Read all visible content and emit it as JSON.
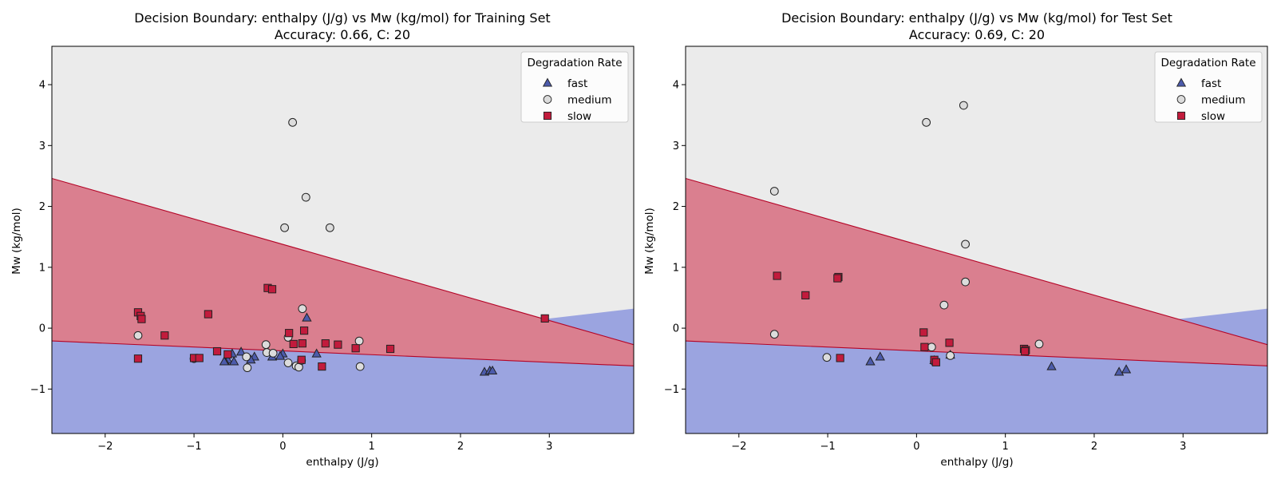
{
  "colors": {
    "region_fast": "#9ba4e0",
    "region_medium": "#ebebeb",
    "region_slow": "#da7f8f",
    "boundary": "#b40426",
    "marker_fast": "#4c5bab",
    "marker_medium": "#dcdcdc",
    "marker_slow": "#c21b3c",
    "marker_edge": "#222222"
  },
  "chart_data": [
    {
      "type": "scatter",
      "title": "Decision Boundary: enthalpy (J/g) vs Mw (kg/mol) for Training Set",
      "subtitle": "Accuracy: 0.66, C: 20",
      "xlabel": "enthalpy (J/g)",
      "ylabel": "Mw (kg/mol)",
      "xlim": [
        -2.6,
        3.95
      ],
      "ylim": [
        -1.73,
        4.63
      ],
      "xticks": [
        -2,
        -1,
        0,
        1,
        2,
        3
      ],
      "yticks": [
        -1,
        0,
        1,
        2,
        3,
        4
      ],
      "legend": {
        "title": "Degradation Rate",
        "position": "top-right",
        "entries": [
          "fast",
          "medium",
          "slow"
        ]
      },
      "regions": {
        "upper_boundary": {
          "y_at_xmin": 2.46,
          "y_at_xmax": -0.27
        },
        "lower_boundary": {
          "y_at_xmin": -0.21,
          "y_at_xmax": -0.62
        },
        "fast_wedge": {
          "x_start": 2.95,
          "y_start": 0.15,
          "y_at_xmax": 0.32
        }
      },
      "series": [
        {
          "name": "fast",
          "marker": "triangle",
          "points": [
            [
              0.27,
              0.17
            ],
            [
              -0.47,
              -0.39
            ],
            [
              -0.32,
              -0.47
            ],
            [
              -0.57,
              -0.42
            ],
            [
              -0.12,
              -0.47
            ],
            [
              0.38,
              -0.42
            ],
            [
              0.0,
              -0.42
            ],
            [
              -0.62,
              -0.52
            ],
            [
              -0.55,
              -0.55
            ],
            [
              -0.65,
              -0.55
            ],
            [
              -0.03,
              -0.46
            ],
            [
              -0.36,
              -0.52
            ],
            [
              2.27,
              -0.72
            ],
            [
              2.33,
              -0.7
            ],
            [
              2.36,
              -0.7
            ],
            [
              -0.66,
              -0.55
            ]
          ]
        },
        {
          "name": "medium",
          "marker": "circle",
          "points": [
            [
              0.11,
              3.38
            ],
            [
              0.26,
              2.15
            ],
            [
              0.02,
              1.65
            ],
            [
              0.53,
              1.65
            ],
            [
              0.22,
              0.32
            ],
            [
              0.06,
              -0.15
            ],
            [
              -0.19,
              -0.27
            ],
            [
              -1.63,
              -0.12
            ],
            [
              -0.18,
              -0.4
            ],
            [
              -0.41,
              -0.47
            ],
            [
              -0.11,
              -0.41
            ],
            [
              0.06,
              -0.57
            ],
            [
              -0.4,
              -0.65
            ],
            [
              0.15,
              -0.62
            ],
            [
              0.18,
              -0.64
            ],
            [
              -1.0,
              -0.5
            ],
            [
              0.86,
              -0.21
            ],
            [
              0.87,
              -0.63
            ],
            [
              0.21,
              -0.53
            ]
          ]
        },
        {
          "name": "slow",
          "marker": "square",
          "points": [
            [
              -0.17,
              0.66
            ],
            [
              -0.12,
              0.64
            ],
            [
              -1.63,
              0.26
            ],
            [
              -1.6,
              0.2
            ],
            [
              -1.59,
              0.15
            ],
            [
              -0.84,
              0.23
            ],
            [
              -1.33,
              -0.12
            ],
            [
              -0.74,
              -0.38
            ],
            [
              -0.62,
              -0.43
            ],
            [
              0.07,
              -0.08
            ],
            [
              0.12,
              -0.26
            ],
            [
              0.24,
              -0.04
            ],
            [
              0.22,
              -0.25
            ],
            [
              0.48,
              -0.25
            ],
            [
              0.62,
              -0.27
            ],
            [
              0.82,
              -0.33
            ],
            [
              1.21,
              -0.34
            ],
            [
              0.21,
              -0.52
            ],
            [
              0.44,
              -0.63
            ],
            [
              -1.63,
              -0.5
            ],
            [
              -1.0,
              -0.49
            ],
            [
              -0.94,
              -0.49
            ],
            [
              2.95,
              0.16
            ]
          ]
        }
      ]
    },
    {
      "type": "scatter",
      "title": "Decision Boundary: enthalpy (J/g) vs Mw (kg/mol) for Test Set",
      "subtitle": "Accuracy: 0.69, C: 20",
      "xlabel": "enthalpy (J/g)",
      "ylabel": "Mw (kg/mol)",
      "xlim": [
        -2.6,
        3.95
      ],
      "ylim": [
        -1.73,
        4.63
      ],
      "xticks": [
        -2,
        -1,
        0,
        1,
        2,
        3
      ],
      "yticks": [
        -1,
        0,
        1,
        2,
        3,
        4
      ],
      "legend": {
        "title": "Degradation Rate",
        "position": "top-right",
        "entries": [
          "fast",
          "medium",
          "slow"
        ]
      },
      "regions": {
        "upper_boundary": {
          "y_at_xmin": 2.46,
          "y_at_xmax": -0.27
        },
        "lower_boundary": {
          "y_at_xmin": -0.21,
          "y_at_xmax": -0.62
        },
        "fast_wedge": {
          "x_start": 2.95,
          "y_start": 0.15,
          "y_at_xmax": 0.32
        }
      },
      "series": [
        {
          "name": "fast",
          "marker": "triangle",
          "points": [
            [
              -0.52,
              -0.55
            ],
            [
              -0.41,
              -0.47
            ],
            [
              0.2,
              -0.53
            ],
            [
              0.38,
              -0.44
            ],
            [
              1.52,
              -0.63
            ],
            [
              2.28,
              -0.72
            ],
            [
              2.36,
              -0.68
            ]
          ]
        },
        {
          "name": "medium",
          "marker": "circle",
          "points": [
            [
              0.53,
              3.66
            ],
            [
              0.11,
              3.38
            ],
            [
              -1.6,
              2.25
            ],
            [
              0.55,
              1.38
            ],
            [
              0.55,
              0.76
            ],
            [
              0.31,
              0.38
            ],
            [
              -1.6,
              -0.1
            ],
            [
              -1.01,
              -0.48
            ],
            [
              0.17,
              -0.31
            ],
            [
              0.38,
              -0.45
            ],
            [
              1.38,
              -0.26
            ],
            [
              0.2,
              -0.55
            ]
          ]
        },
        {
          "name": "slow",
          "marker": "square",
          "points": [
            [
              -1.57,
              0.86
            ],
            [
              -0.88,
              0.84
            ],
            [
              -0.89,
              0.82
            ],
            [
              -1.25,
              0.54
            ],
            [
              0.08,
              -0.07
            ],
            [
              0.09,
              -0.31
            ],
            [
              0.37,
              -0.24
            ],
            [
              1.21,
              -0.34
            ],
            [
              1.23,
              -0.36
            ],
            [
              1.22,
              -0.38
            ],
            [
              0.2,
              -0.52
            ],
            [
              -0.86,
              -0.49
            ],
            [
              0.22,
              -0.56
            ]
          ]
        }
      ]
    }
  ]
}
